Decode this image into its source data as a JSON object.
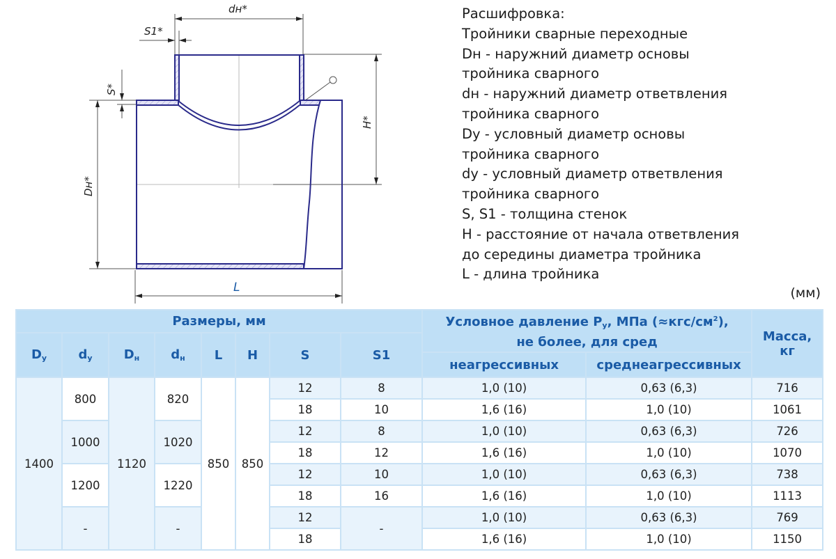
{
  "drawing": {
    "labels": {
      "dn": "dн*",
      "s1": "S1*",
      "s": "S*",
      "Dn": "Dн*",
      "H": "H*",
      "L": "L"
    },
    "line_color": "#2a2a8a"
  },
  "legend": {
    "lines": [
      "Расшифровка:",
      "Тройники сварные переходные",
      "Dн - наружний диаметр основы",
      "тройника сварного",
      "dн - наружний диаметр ответвления",
      "тройника сварного",
      "Dу - условный диаметр основы",
      "тройника сварного",
      "dу - условный диаметр ответвления",
      "тройника сварного",
      "S, S1 - толщина стенок",
      "H - расстояние от начала ответвления",
      "до середины диаметра тройника",
      "L - длина тройника"
    ],
    "unit": "(мм)"
  },
  "table": {
    "colors": {
      "header_bg": "#bfdff6",
      "header_text": "#1a5ba6",
      "light_row": "#e8f3fc",
      "border": "#c9e2f5"
    },
    "group_sizes": "Размеры, мм",
    "group_pressure_1": "Условное давление P",
    "group_pressure_sub": "у",
    "group_pressure_2": ", МПа (≈кгс/см",
    "group_pressure_sup": "2",
    "group_pressure_3": "),",
    "group_pressure_line2": "не более, для сред",
    "mass": "Масса, кг",
    "cols": {
      "Dy": {
        "base": "D",
        "sub": "у"
      },
      "dy": {
        "base": "d",
        "sub": "у"
      },
      "Dn": {
        "base": "D",
        "sub": "н"
      },
      "dn": {
        "base": "d",
        "sub": "н"
      },
      "L": "L",
      "H": "H",
      "S": "S",
      "S1": "S1"
    },
    "pressure_cols": [
      "неагрессивных",
      "среднеагрессивных"
    ],
    "Dy": "1400",
    "Dn": "1120",
    "L": "850",
    "H": "850",
    "groups": [
      {
        "dy": "800",
        "dn": "820",
        "S1_merged": null,
        "rows": [
          {
            "S": "12",
            "S1": "8",
            "p1": "1,0 (10)",
            "p2": "0,63 (6,3)",
            "mass": "716"
          },
          {
            "S": "18",
            "S1": "10",
            "p1": "1,6 (16)",
            "p2": "1,0 (10)",
            "mass": "1061"
          }
        ]
      },
      {
        "dy": "1000",
        "dn": "1020",
        "S1_merged": null,
        "rows": [
          {
            "S": "12",
            "S1": "8",
            "p1": "1,0 (10)",
            "p2": "0,63 (6,3)",
            "mass": "726"
          },
          {
            "S": "18",
            "S1": "12",
            "p1": "1,6 (16)",
            "p2": "1,0 (10)",
            "mass": "1070"
          }
        ]
      },
      {
        "dy": "1200",
        "dn": "1220",
        "S1_merged": null,
        "rows": [
          {
            "S": "12",
            "S1": "10",
            "p1": "1,0 (10)",
            "p2": "0,63 (6,3)",
            "mass": "738"
          },
          {
            "S": "18",
            "S1": "16",
            "p1": "1,6 (16)",
            "p2": "1,0 (10)",
            "mass": "1113"
          }
        ]
      },
      {
        "dy": "-",
        "dn": "-",
        "S1_merged": "-",
        "rows": [
          {
            "S": "12",
            "p1": "1,0 (10)",
            "p2": "0,63 (6,3)",
            "mass": "769"
          },
          {
            "S": "18",
            "p1": "1,6 (16)",
            "p2": "1,0 (10)",
            "mass": "1150"
          }
        ]
      }
    ]
  }
}
